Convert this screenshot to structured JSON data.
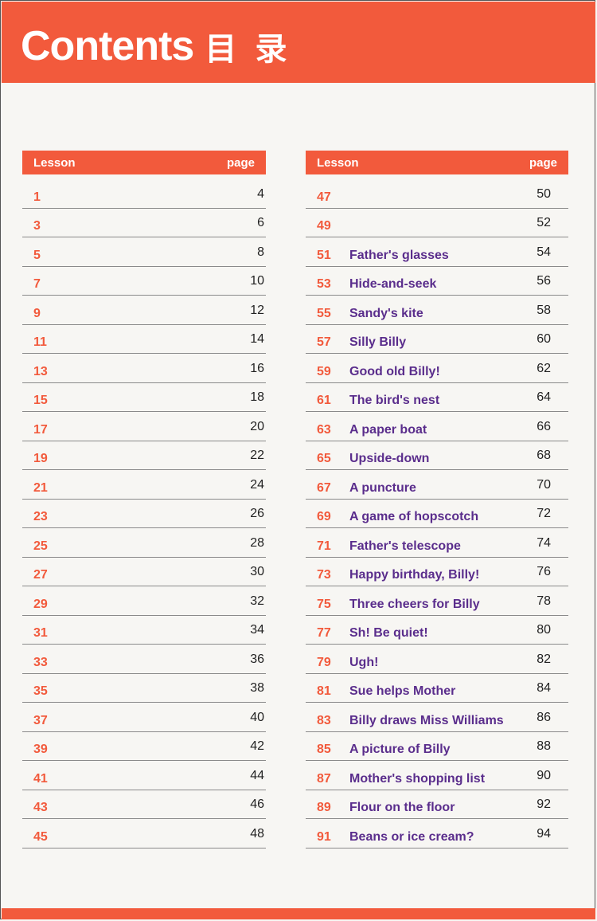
{
  "header": {
    "title_en": "Contents",
    "title_cn": "目 录"
  },
  "colors": {
    "accent": "#f25a3c",
    "title_text": "#5a2d8c"
  },
  "columns": {
    "lesson_label": "Lesson",
    "page_label": "page"
  },
  "left_rows": [
    {
      "num": "1",
      "title": "",
      "page": "4"
    },
    {
      "num": "3",
      "title": "",
      "page": "6"
    },
    {
      "num": "5",
      "title": "",
      "page": "8"
    },
    {
      "num": "7",
      "title": "",
      "page": "10"
    },
    {
      "num": "9",
      "title": "",
      "page": "12"
    },
    {
      "num": "11",
      "title": "",
      "page": "14"
    },
    {
      "num": "13",
      "title": "",
      "page": "16"
    },
    {
      "num": "15",
      "title": "",
      "page": "18"
    },
    {
      "num": "17",
      "title": "",
      "page": "20"
    },
    {
      "num": "19",
      "title": "",
      "page": "22"
    },
    {
      "num": "21",
      "title": "",
      "page": "24"
    },
    {
      "num": "23",
      "title": "",
      "page": "26"
    },
    {
      "num": "25",
      "title": "",
      "page": "28"
    },
    {
      "num": "27",
      "title": "",
      "page": "30"
    },
    {
      "num": "29",
      "title": "",
      "page": "32"
    },
    {
      "num": "31",
      "title": "",
      "page": "34"
    },
    {
      "num": "33",
      "title": "",
      "page": "36"
    },
    {
      "num": "35",
      "title": "",
      "page": "38"
    },
    {
      "num": "37",
      "title": "",
      "page": "40"
    },
    {
      "num": "39",
      "title": "",
      "page": "42"
    },
    {
      "num": "41",
      "title": "",
      "page": "44"
    },
    {
      "num": "43",
      "title": "",
      "page": "46"
    },
    {
      "num": "45",
      "title": "",
      "page": "48"
    }
  ],
  "right_rows": [
    {
      "num": "47",
      "title": "",
      "page": "50"
    },
    {
      "num": "49",
      "title": "",
      "page": "52"
    },
    {
      "num": "51",
      "title": "Father's glasses",
      "page": "54"
    },
    {
      "num": "53",
      "title": "Hide-and-seek",
      "page": "56"
    },
    {
      "num": "55",
      "title": "Sandy's kite",
      "page": "58"
    },
    {
      "num": "57",
      "title": "Silly Billy",
      "page": "60"
    },
    {
      "num": "59",
      "title": "Good old Billy!",
      "page": "62"
    },
    {
      "num": "61",
      "title": "The bird's nest",
      "page": "64"
    },
    {
      "num": "63",
      "title": "A paper boat",
      "page": "66"
    },
    {
      "num": "65",
      "title": "Upside-down",
      "page": "68"
    },
    {
      "num": "67",
      "title": "A puncture",
      "page": "70"
    },
    {
      "num": "69",
      "title": "A game of hopscotch",
      "page": "72"
    },
    {
      "num": "71",
      "title": "Father's telescope",
      "page": "74"
    },
    {
      "num": "73",
      "title": "Happy birthday, Billy!",
      "page": "76"
    },
    {
      "num": "75",
      "title": "Three cheers for Billy",
      "page": "78"
    },
    {
      "num": "77",
      "title": "Sh! Be quiet!",
      "page": "80"
    },
    {
      "num": "79",
      "title": "Ugh!",
      "page": "82"
    },
    {
      "num": "81",
      "title": "Sue helps Mother",
      "page": "84"
    },
    {
      "num": "83",
      "title": "Billy draws Miss Williams",
      "page": "86"
    },
    {
      "num": "85",
      "title": "A picture of Billy",
      "page": "88"
    },
    {
      "num": "87",
      "title": "Mother's shopping list",
      "page": "90"
    },
    {
      "num": "89",
      "title": "Flour on the floor",
      "page": "92"
    },
    {
      "num": "91",
      "title": "Beans or ice cream?",
      "page": "94"
    }
  ]
}
